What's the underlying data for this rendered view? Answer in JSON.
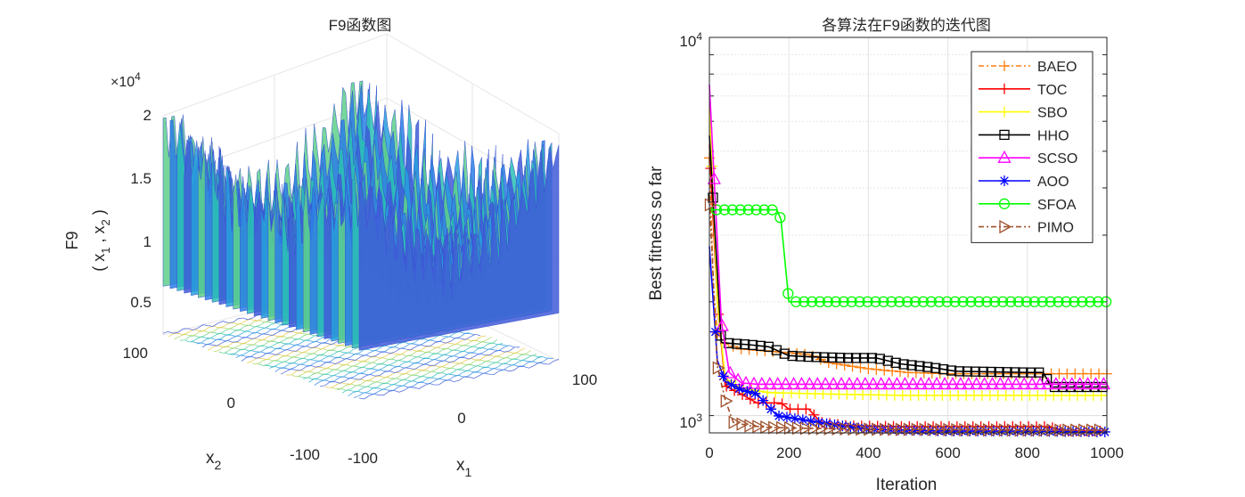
{
  "figure": {
    "left": {
      "title": "F9函数图",
      "zlabel_main": "F9",
      "zlabel_sub": "( x",
      "zlabel_parts": [
        "1",
        " , x",
        "2",
        " )"
      ],
      "xlabel": "x",
      "xlabel_sub": "1",
      "ylabel": "x",
      "ylabel_sub": "2",
      "exponent": "×10",
      "exponent_power": "4",
      "z_ticks": [
        "2",
        "1.5",
        "1",
        "0.5"
      ],
      "x_ticks": [
        "-100",
        "0",
        "100"
      ],
      "y_ticks": [
        "100",
        "0",
        "-100"
      ]
    }
  },
  "chart_data": [
    {
      "type": "surface",
      "title": "F9函数图",
      "xlabel": "x1",
      "ylabel": "x2",
      "zlabel": "F9 (x1, x2)",
      "xlim": [
        -100,
        100
      ],
      "ylim": [
        -100,
        100
      ],
      "zlim": [
        0,
        20000
      ],
      "z_tick_values": [
        5000,
        10000,
        15000,
        20000
      ]
    },
    {
      "type": "line",
      "title": "各算法在F9函数的迭代图",
      "xlabel": "Iteration",
      "ylabel": "Best fitness so far",
      "yscale": "log",
      "xlim": [
        0,
        1000
      ],
      "ylim": [
        900,
        10000
      ],
      "x_ticks": [
        "0",
        "200",
        "400",
        "600",
        "800",
        "1000"
      ],
      "y_ticks": [
        "10",
        "10"
      ],
      "y_tick_powers": [
        "3",
        "4"
      ],
      "legend_position": "top-right",
      "grid": true,
      "series": [
        {
          "name": "BAEO",
          "color": "#ff7f0e",
          "marker": "plus",
          "dash": "6,3,2,3",
          "points": [
            [
              0,
              4800
            ],
            [
              10,
              2200
            ],
            [
              20,
              1650
            ],
            [
              40,
              1550
            ],
            [
              80,
              1500
            ],
            [
              150,
              1480
            ],
            [
              250,
              1450
            ],
            [
              300,
              1380
            ],
            [
              400,
              1330
            ],
            [
              500,
              1300
            ],
            [
              600,
              1290
            ],
            [
              800,
              1290
            ],
            [
              1000,
              1290
            ]
          ]
        },
        {
          "name": "TOC",
          "color": "#ff0000",
          "marker": "plus",
          "dash": "",
          "points": [
            [
              0,
              5200
            ],
            [
              20,
              2000
            ],
            [
              40,
              1200
            ],
            [
              80,
              1140
            ],
            [
              120,
              1080
            ],
            [
              180,
              1080
            ],
            [
              200,
              1040
            ],
            [
              250,
              1040
            ],
            [
              280,
              960
            ],
            [
              350,
              940
            ],
            [
              500,
              935
            ],
            [
              700,
              935
            ],
            [
              850,
              935
            ],
            [
              900,
              910
            ],
            [
              1000,
              910
            ]
          ]
        },
        {
          "name": "SBO",
          "color": "#ffff00",
          "marker": "plus",
          "dash": "",
          "points": [
            [
              0,
              6500
            ],
            [
              20,
              2000
            ],
            [
              40,
              1250
            ],
            [
              80,
              1180
            ],
            [
              150,
              1150
            ],
            [
              300,
              1140
            ],
            [
              500,
              1130
            ],
            [
              700,
              1130
            ],
            [
              1000,
              1130
            ]
          ]
        },
        {
          "name": "HHO",
          "color": "#000000",
          "marker": "square",
          "dash": "",
          "points": [
            [
              0,
              5500
            ],
            [
              30,
              1560
            ],
            [
              60,
              1550
            ],
            [
              100,
              1540
            ],
            [
              150,
              1520
            ],
            [
              200,
              1440
            ],
            [
              250,
              1430
            ],
            [
              350,
              1420
            ],
            [
              420,
              1420
            ],
            [
              480,
              1370
            ],
            [
              560,
              1340
            ],
            [
              620,
              1310
            ],
            [
              800,
              1300
            ],
            [
              840,
              1300
            ],
            [
              860,
              1190
            ],
            [
              1000,
              1190
            ]
          ]
        },
        {
          "name": "SCSO",
          "color": "#ff00ff",
          "marker": "triangle",
          "dash": "",
          "points": [
            [
              0,
              7500
            ],
            [
              30,
              1780
            ],
            [
              50,
              1300
            ],
            [
              80,
              1220
            ],
            [
              120,
              1210
            ],
            [
              200,
              1210
            ],
            [
              400,
              1210
            ],
            [
              700,
              1210
            ],
            [
              1000,
              1210
            ]
          ]
        },
        {
          "name": "AOO",
          "color": "#0000ff",
          "marker": "asterisk",
          "dash": "",
          "points": [
            [
              0,
              2800
            ],
            [
              20,
              1400
            ],
            [
              40,
              1230
            ],
            [
              80,
              1170
            ],
            [
              120,
              1140
            ],
            [
              170,
              1000
            ],
            [
              300,
              950
            ],
            [
              400,
              920
            ],
            [
              600,
              910
            ],
            [
              800,
              910
            ],
            [
              1000,
              905
            ]
          ]
        },
        {
          "name": "SFOA",
          "color": "#00ff00",
          "marker": "circle",
          "dash": "",
          "points": [
            [
              0,
              3500
            ],
            [
              170,
              3500
            ],
            [
              180,
              3300
            ],
            [
              200,
              2000
            ],
            [
              400,
              2000
            ],
            [
              600,
              2000
            ],
            [
              800,
              2000
            ],
            [
              1000,
              2000
            ]
          ]
        },
        {
          "name": "PIMO",
          "color": "#a0522d",
          "marker": "triangle-right",
          "dash": "6,3,2,3",
          "points": [
            [
              0,
              3800
            ],
            [
              20,
              1350
            ],
            [
              40,
              1100
            ],
            [
              60,
              960
            ],
            [
              100,
              940
            ],
            [
              150,
              930
            ],
            [
              250,
              925
            ],
            [
              400,
              920
            ],
            [
              600,
              918
            ],
            [
              800,
              915
            ],
            [
              1000,
              915
            ]
          ]
        }
      ]
    }
  ]
}
